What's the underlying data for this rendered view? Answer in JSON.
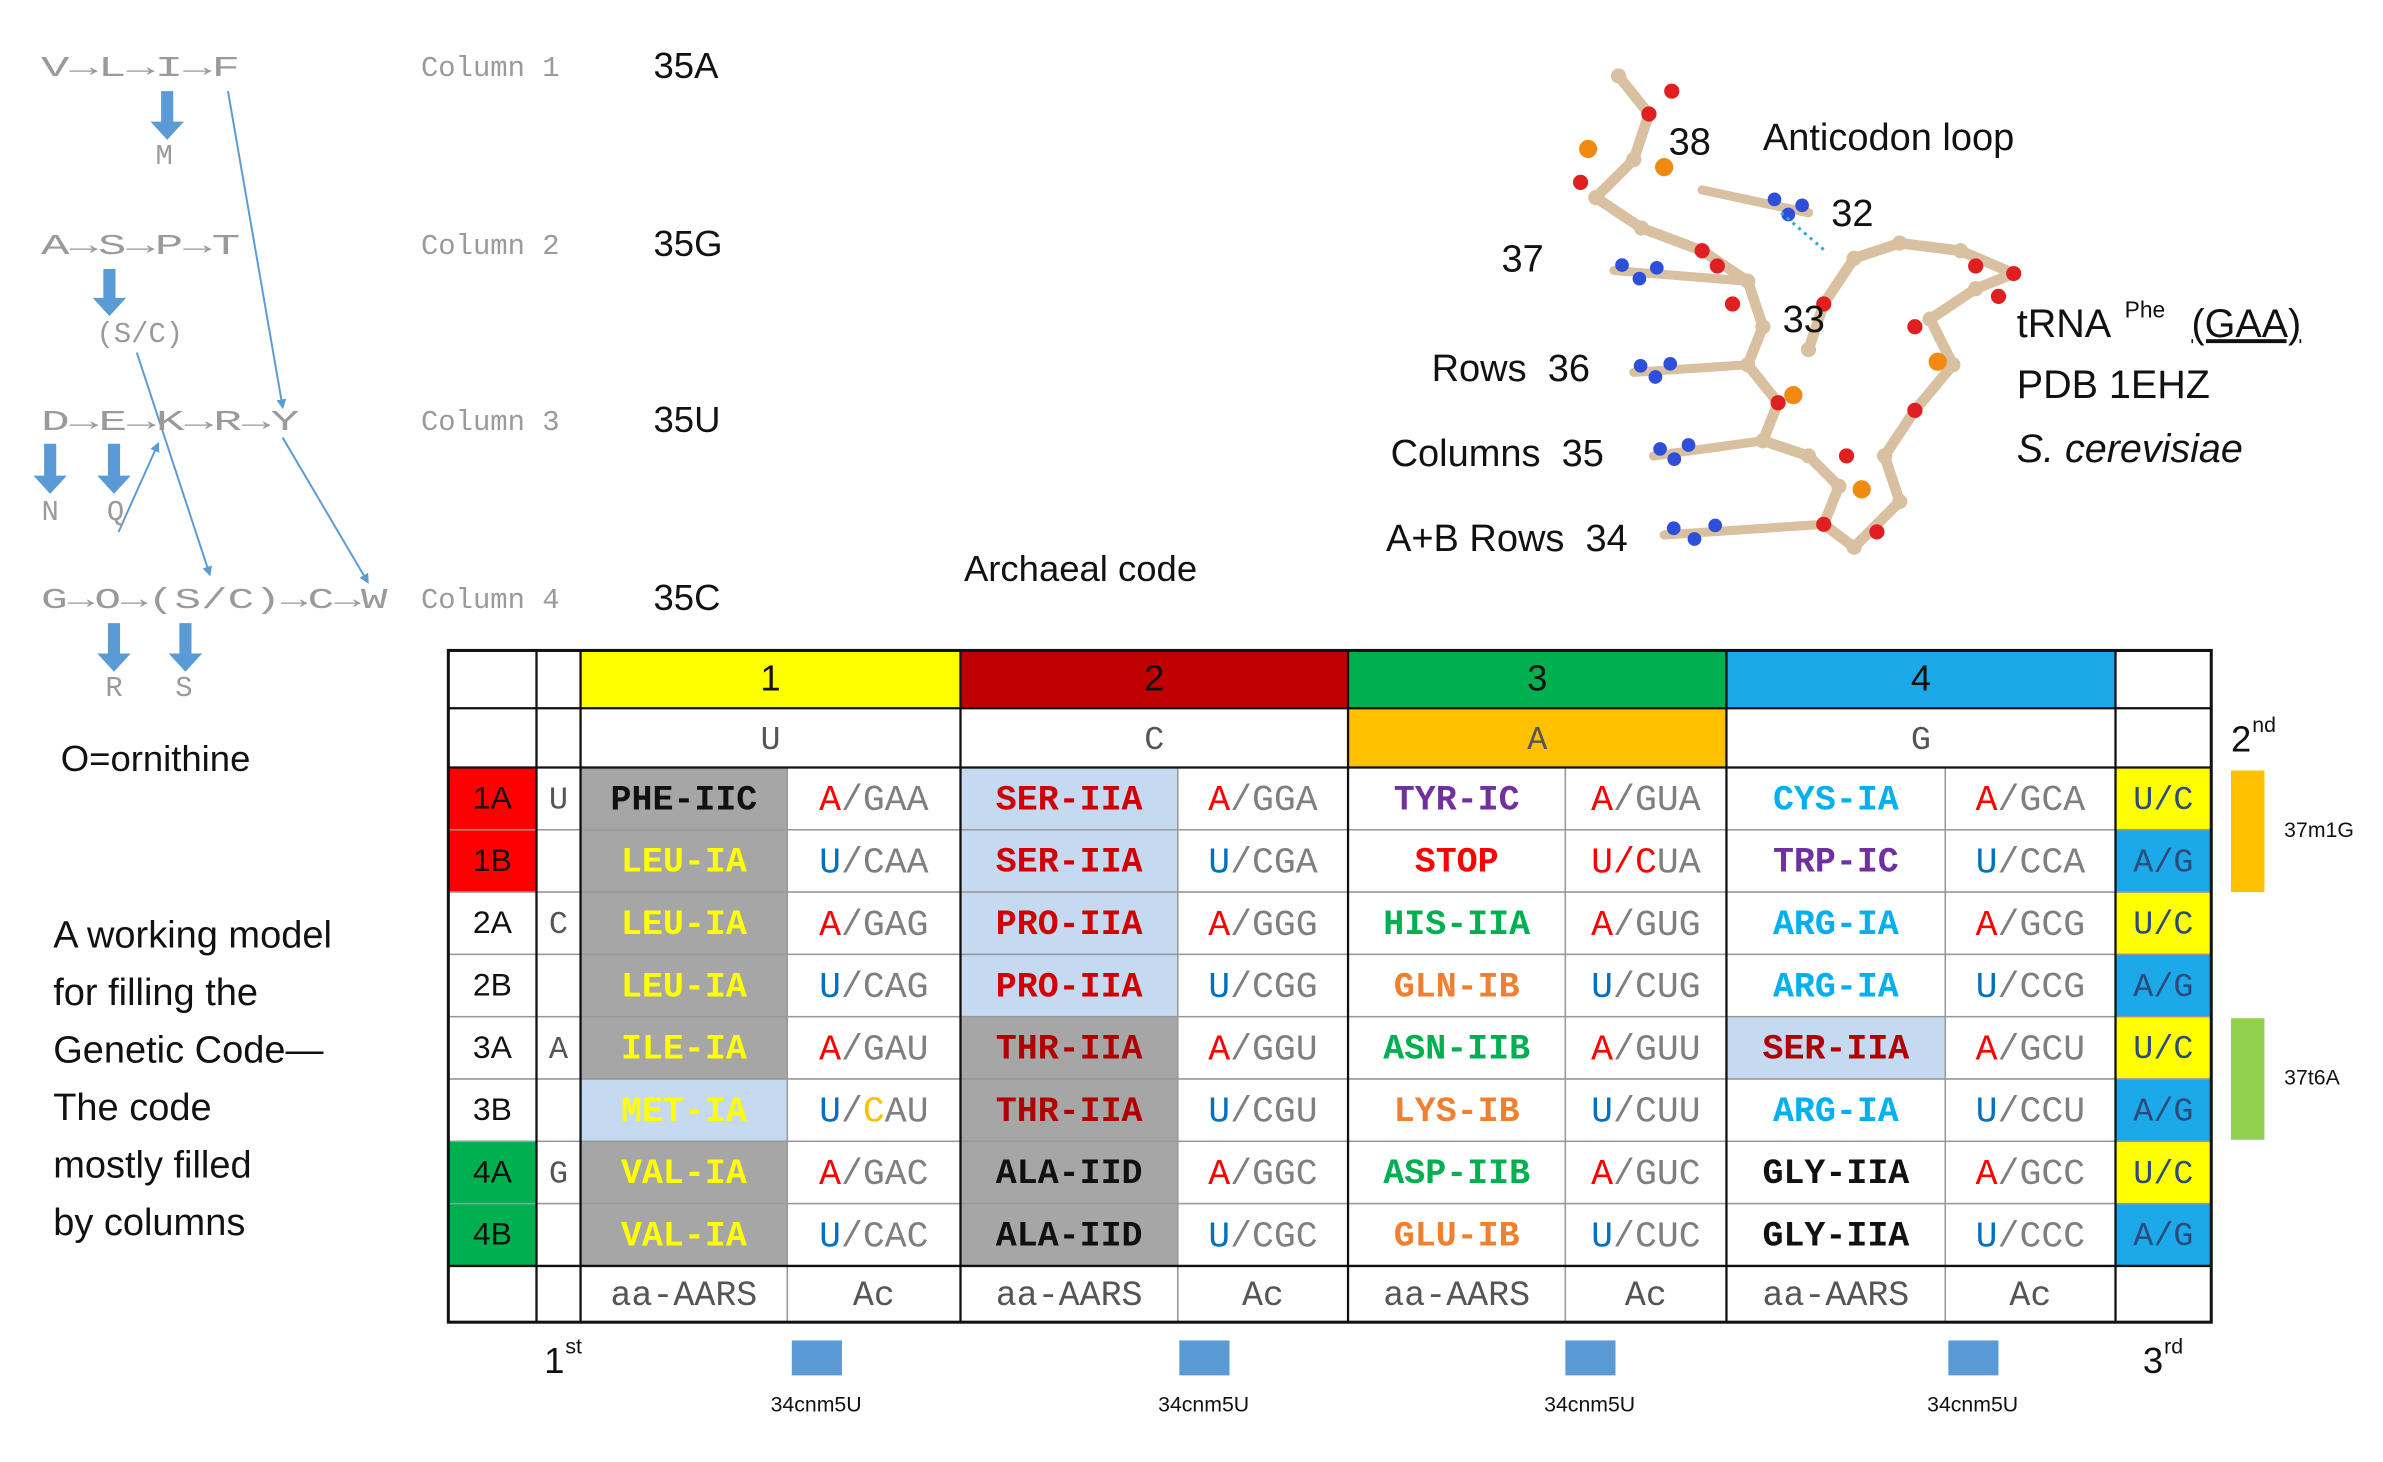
{
  "pathways": [
    {
      "chain": "V→L→I→F",
      "column": "Column 1",
      "site": "35A",
      "branches": [
        "M"
      ]
    },
    {
      "chain": "A→S→P→T",
      "column": "Column 2",
      "site": "35G",
      "branches": [
        "(S/C)"
      ]
    },
    {
      "chain": "D→E→K→R→Y",
      "column": "Column 3",
      "site": "35U",
      "branches": [
        "N",
        "Q"
      ]
    },
    {
      "chain": "G→O→(S/C)→C→W",
      "column": "Column 4",
      "site": "35C",
      "branches": [
        "R",
        "S"
      ]
    }
  ],
  "ornithine_note": "O=ornithine",
  "model_text": [
    "A working model",
    "for filling the",
    "Genetic Code—",
    "The code",
    "mostly filled",
    "by columns"
  ],
  "structure": {
    "labels": [
      "38",
      "Anticodon loop",
      "32",
      "37",
      "33",
      "Rows  36",
      "Columns  35",
      "A+B Rows  34"
    ],
    "trna": {
      "text": "tRNA",
      "sup": "Phe",
      "anticodon": "(GAA)"
    },
    "pdb": "PDB 1EHZ",
    "organism": "S. cerevisiae"
  },
  "table_title": "Archaeal code",
  "table": {
    "col_headers": [
      {
        "text": "1",
        "color": "#ffff00"
      },
      {
        "text": "2",
        "color": "#c00000"
      },
      {
        "text": "3",
        "color": "#00b050"
      },
      {
        "text": "4",
        "color": "#1ca9ea"
      }
    ],
    "bases": [
      {
        "text": "U"
      },
      {
        "text": "C"
      },
      {
        "text": "A",
        "color": "#ffc000"
      },
      {
        "text": "G"
      }
    ],
    "rows": [
      {
        "label": "1A",
        "label_color": "#ff0000",
        "first": "U",
        "third": "U/C",
        "third_color": "#ffff00",
        "cells": [
          {
            "aa": "PHE-IIC",
            "color": "#111111",
            "bg": "#a6a6a6",
            "ac": [
              {
                "text": "A",
                "color": "#ff0000"
              },
              {
                "text": "/GAA",
                "color": "#7f7f7f"
              }
            ]
          },
          {
            "aa": "SER-IIA",
            "color": "#d00000",
            "bg": "#c5d9f1",
            "ac": [
              {
                "text": "A",
                "color": "#ff0000"
              },
              {
                "text": "/GGA",
                "color": "#7f7f7f"
              }
            ]
          },
          {
            "aa": "TYR-IC",
            "color": "#7030a0",
            "ac": [
              {
                "text": "A",
                "color": "#ff0000"
              },
              {
                "text": "/GUA",
                "color": "#7f7f7f"
              }
            ]
          },
          {
            "aa": "CYS-IA",
            "color": "#00b0f0",
            "ac": [
              {
                "text": "A",
                "color": "#ff0000"
              },
              {
                "text": "/GCA",
                "color": "#7f7f7f"
              }
            ]
          }
        ]
      },
      {
        "label": "1B",
        "label_color": "#ff0000",
        "third": "A/G",
        "third_color": "#1ca9ea",
        "cells": [
          {
            "aa": "LEU-IA",
            "color": "#ffff00",
            "bg": "#a6a6a6",
            "ac": [
              {
                "text": "U",
                "color": "#0070c0"
              },
              {
                "text": "/CAA",
                "color": "#7f7f7f"
              }
            ]
          },
          {
            "aa": "SER-IIA",
            "color": "#d00000",
            "bg": "#c5d9f1",
            "ac": [
              {
                "text": "U",
                "color": "#0070c0"
              },
              {
                "text": "/CGA",
                "color": "#7f7f7f"
              }
            ]
          },
          {
            "aa": "STOP",
            "color": "#ff0000",
            "ac": [
              {
                "text": "U/C",
                "color": "#ff0000"
              },
              {
                "text": "UA",
                "color": "#7f7f7f"
              }
            ]
          },
          {
            "aa": "TRP-IC",
            "color": "#7030a0",
            "ac": [
              {
                "text": "U",
                "color": "#0070c0"
              },
              {
                "text": "/CCA",
                "color": "#7f7f7f"
              }
            ]
          }
        ]
      },
      {
        "label": "2A",
        "first": "C",
        "third": "U/C",
        "third_color": "#ffff00",
        "cells": [
          {
            "aa": "LEU-IA",
            "color": "#ffff00",
            "bg": "#a6a6a6",
            "ac": [
              {
                "text": "A",
                "color": "#ff0000"
              },
              {
                "text": "/GAG",
                "color": "#7f7f7f"
              }
            ]
          },
          {
            "aa": "PRO-IIA",
            "color": "#d00000",
            "bg": "#c5d9f1",
            "ac": [
              {
                "text": "A",
                "color": "#ff0000"
              },
              {
                "text": "/GGG",
                "color": "#7f7f7f"
              }
            ]
          },
          {
            "aa": "HIS-IIA",
            "color": "#00b050",
            "ac": [
              {
                "text": "A",
                "color": "#ff0000"
              },
              {
                "text": "/GUG",
                "color": "#7f7f7f"
              }
            ]
          },
          {
            "aa": "ARG-IA",
            "color": "#00b0f0",
            "ac": [
              {
                "text": "A",
                "color": "#ff0000"
              },
              {
                "text": "/GCG",
                "color": "#7f7f7f"
              }
            ]
          }
        ]
      },
      {
        "label": "2B",
        "third": "A/G",
        "third_color": "#1ca9ea",
        "cells": [
          {
            "aa": "LEU-IA",
            "color": "#ffff00",
            "bg": "#a6a6a6",
            "ac": [
              {
                "text": "U",
                "color": "#0070c0"
              },
              {
                "text": "/CAG",
                "color": "#7f7f7f"
              }
            ]
          },
          {
            "aa": "PRO-IIA",
            "color": "#d00000",
            "bg": "#c5d9f1",
            "ac": [
              {
                "text": "U",
                "color": "#0070c0"
              },
              {
                "text": "/CGG",
                "color": "#7f7f7f"
              }
            ]
          },
          {
            "aa": "GLN-IB",
            "color": "#f08030",
            "ac": [
              {
                "text": "U",
                "color": "#0070c0"
              },
              {
                "text": "/CUG",
                "color": "#7f7f7f"
              }
            ]
          },
          {
            "aa": "ARG-IA",
            "color": "#00b0f0",
            "ac": [
              {
                "text": "U",
                "color": "#0070c0"
              },
              {
                "text": "/CCG",
                "color": "#7f7f7f"
              }
            ]
          }
        ]
      },
      {
        "label": "3A",
        "first": "A",
        "third": "U/C",
        "third_color": "#ffff00",
        "cells": [
          {
            "aa": "ILE-IA",
            "color": "#ffff00",
            "bg": "#a6a6a6",
            "ac": [
              {
                "text": "A",
                "color": "#ff0000"
              },
              {
                "text": "/GAU",
                "color": "#7f7f7f"
              }
            ]
          },
          {
            "aa": "THR-IIA",
            "color": "#b00000",
            "bg": "#a6a6a6",
            "ac": [
              {
                "text": "A",
                "color": "#ff0000"
              },
              {
                "text": "/GGU",
                "color": "#7f7f7f"
              }
            ]
          },
          {
            "aa": "ASN-IIB",
            "color": "#00b050",
            "ac": [
              {
                "text": "A",
                "color": "#ff0000"
              },
              {
                "text": "/GUU",
                "color": "#7f7f7f"
              }
            ]
          },
          {
            "aa": "SER-IIA",
            "color": "#b00000",
            "bg": "#c5d9f1",
            "ac": [
              {
                "text": "A",
                "color": "#ff0000"
              },
              {
                "text": "/GCU",
                "color": "#7f7f7f"
              }
            ]
          }
        ]
      },
      {
        "label": "3B",
        "third": "A/G",
        "third_color": "#1ca9ea",
        "cells": [
          {
            "aa": "MET-IA",
            "color": "#ffff00",
            "bg": "#c5d9f1",
            "ac": [
              {
                "text": "U",
                "color": "#0070c0"
              },
              {
                "text": "/",
                "color": "#7f7f7f"
              },
              {
                "text": "C",
                "color": "#ffc000"
              },
              {
                "text": "AU",
                "color": "#7f7f7f"
              }
            ]
          },
          {
            "aa": "THR-IIA",
            "color": "#b00000",
            "bg": "#a6a6a6",
            "ac": [
              {
                "text": "U",
                "color": "#0070c0"
              },
              {
                "text": "/CGU",
                "color": "#7f7f7f"
              }
            ]
          },
          {
            "aa": "LYS-IB",
            "color": "#f08030",
            "ac": [
              {
                "text": "U",
                "color": "#0070c0"
              },
              {
                "text": "/CUU",
                "color": "#7f7f7f"
              }
            ]
          },
          {
            "aa": "ARG-IA",
            "color": "#00b0f0",
            "ac": [
              {
                "text": "U",
                "color": "#0070c0"
              },
              {
                "text": "/CCU",
                "color": "#7f7f7f"
              }
            ]
          }
        ]
      },
      {
        "label": "4A",
        "label_color": "#00b050",
        "first": "G",
        "third": "U/C",
        "third_color": "#ffff00",
        "cells": [
          {
            "aa": "VAL-IA",
            "color": "#ffff00",
            "bg": "#a6a6a6",
            "ac": [
              {
                "text": "A",
                "color": "#ff0000"
              },
              {
                "text": "/GAC",
                "color": "#7f7f7f"
              }
            ]
          },
          {
            "aa": "ALA-IID",
            "color": "#111111",
            "bg": "#a6a6a6",
            "ac": [
              {
                "text": "A",
                "color": "#ff0000"
              },
              {
                "text": "/GGC",
                "color": "#7f7f7f"
              }
            ]
          },
          {
            "aa": "ASP-IIB",
            "color": "#00b050",
            "ac": [
              {
                "text": "A",
                "color": "#ff0000"
              },
              {
                "text": "/GUC",
                "color": "#7f7f7f"
              }
            ]
          },
          {
            "aa": "GLY-IIA",
            "color": "#111111",
            "ac": [
              {
                "text": "A",
                "color": "#ff0000"
              },
              {
                "text": "/GCC",
                "color": "#7f7f7f"
              }
            ]
          }
        ]
      },
      {
        "label": "4B",
        "label_color": "#00b050",
        "third": "A/G",
        "third_color": "#1ca9ea",
        "cells": [
          {
            "aa": "VAL-IA",
            "color": "#ffff00",
            "bg": "#a6a6a6",
            "ac": [
              {
                "text": "U",
                "color": "#0070c0"
              },
              {
                "text": "/CAC",
                "color": "#7f7f7f"
              }
            ]
          },
          {
            "aa": "ALA-IID",
            "color": "#111111",
            "bg": "#a6a6a6",
            "ac": [
              {
                "text": "U",
                "color": "#0070c0"
              },
              {
                "text": "/CGC",
                "color": "#7f7f7f"
              }
            ]
          },
          {
            "aa": "GLU-IB",
            "color": "#f08030",
            "ac": [
              {
                "text": "U",
                "color": "#0070c0"
              },
              {
                "text": "/CUC",
                "color": "#7f7f7f"
              }
            ]
          },
          {
            "aa": "GLY-IIA",
            "color": "#111111",
            "ac": [
              {
                "text": "U",
                "color": "#0070c0"
              },
              {
                "text": "/CCC",
                "color": "#7f7f7f"
              }
            ]
          }
        ]
      }
    ],
    "footer": [
      "aa-AARS",
      "Ac",
      "aa-AARS",
      "Ac",
      "aa-AARS",
      "Ac",
      "aa-AARS",
      "Ac"
    ]
  },
  "position_labels": {
    "first": {
      "text": "1",
      "sup": "st"
    },
    "second": {
      "text": "2",
      "sup": "nd"
    },
    "third": {
      "text": "3",
      "sup": "rd"
    }
  },
  "modifications": [
    {
      "text": "37m1G",
      "color": "#ffc000"
    },
    {
      "text": "37t6A",
      "color": "#92d050"
    }
  ],
  "wobble_marks": [
    {
      "text": "34cnm5U",
      "color": "#5b9bd5"
    },
    {
      "text": "34cnm5U",
      "color": "#5b9bd5"
    },
    {
      "text": "34cnm5U",
      "color": "#5b9bd5"
    },
    {
      "text": "34cnm5U",
      "color": "#5b9bd5"
    }
  ]
}
